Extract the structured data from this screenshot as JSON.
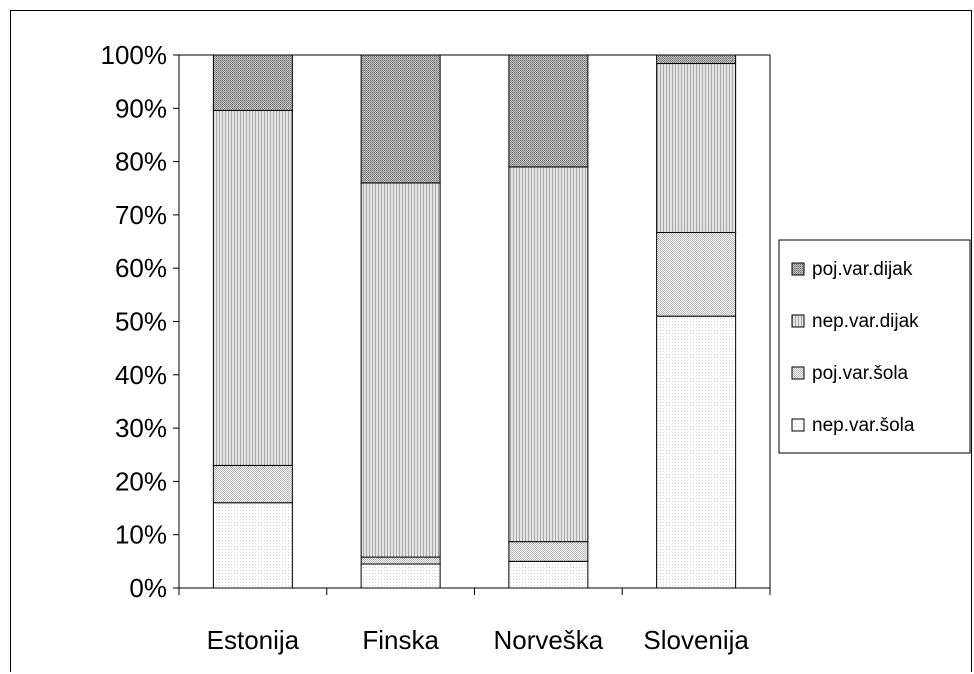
{
  "chart_data": {
    "type": "bar",
    "stacked": true,
    "percent": true,
    "categories": [
      "Estonija",
      "Finska",
      "Norveška",
      "Slovenija"
    ],
    "series": [
      {
        "name": "nep.var.šola",
        "values": [
          16,
          4.5,
          5,
          51
        ],
        "color": "#f6f6f6"
      },
      {
        "name": "poj.var.šola",
        "values": [
          7,
          1.3,
          3.7,
          15.7
        ],
        "color": "#dddddd"
      },
      {
        "name": "nep.var.dijak",
        "values": [
          66.6,
          70.2,
          70.3,
          31.7
        ],
        "color": "#c8c8c8"
      },
      {
        "name": "poj.var.dijak",
        "values": [
          10.4,
          24,
          21,
          1.6
        ],
        "color": "#a9a9a9"
      }
    ],
    "yticks": [
      "0%",
      "10%",
      "20%",
      "30%",
      "40%",
      "50%",
      "60%",
      "70%",
      "80%",
      "90%",
      "100%"
    ],
    "ylim": [
      0,
      100
    ],
    "legend_position": "right",
    "grid": false
  }
}
